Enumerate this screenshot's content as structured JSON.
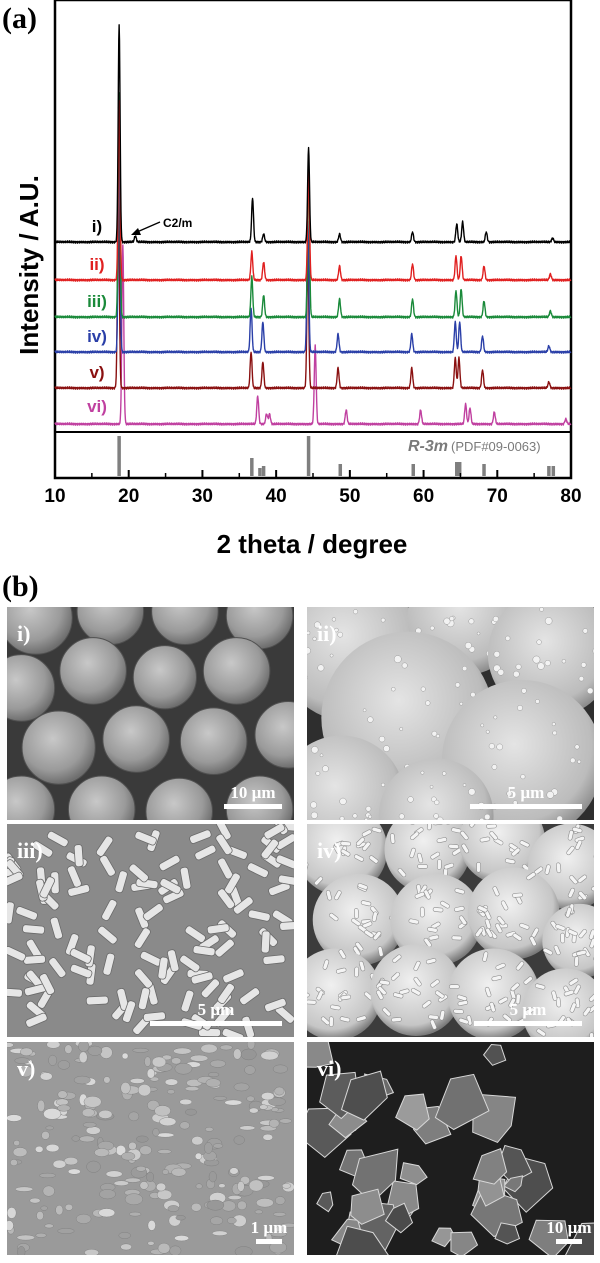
{
  "panel_a_label": "(a)",
  "panel_b_label": "(b)",
  "chart_data": {
    "type": "line",
    "xlabel": "2 theta / degree",
    "ylabel": "Intensity / A.U.",
    "xlim": [
      10,
      80
    ],
    "xticks": [
      10,
      20,
      30,
      40,
      50,
      60,
      70,
      80
    ],
    "annotation": "C2/m",
    "series": [
      {
        "label": "i)",
        "color": "#000000",
        "peaks": [
          {
            "x": 18.7,
            "h": 218
          },
          {
            "x": 20.9,
            "h": 6
          },
          {
            "x": 36.8,
            "h": 44
          },
          {
            "x": 38.3,
            "h": 8
          },
          {
            "x": 44.4,
            "h": 94
          },
          {
            "x": 48.6,
            "h": 8
          },
          {
            "x": 58.5,
            "h": 10
          },
          {
            "x": 64.5,
            "h": 18
          },
          {
            "x": 65.3,
            "h": 20
          },
          {
            "x": 68.5,
            "h": 10
          },
          {
            "x": 77.5,
            "h": 4
          }
        ]
      },
      {
        "label": "ii)",
        "color": "#e02020",
        "peaks": [
          {
            "x": 18.7,
            "h": 180
          },
          {
            "x": 36.7,
            "h": 28
          },
          {
            "x": 38.3,
            "h": 18
          },
          {
            "x": 44.4,
            "h": 110
          },
          {
            "x": 48.6,
            "h": 14
          },
          {
            "x": 58.5,
            "h": 16
          },
          {
            "x": 64.4,
            "h": 24
          },
          {
            "x": 65.1,
            "h": 24
          },
          {
            "x": 68.2,
            "h": 14
          },
          {
            "x": 77.2,
            "h": 6
          }
        ]
      },
      {
        "label": "iii)",
        "color": "#1a8a3a",
        "peaks": [
          {
            "x": 18.7,
            "h": 225
          },
          {
            "x": 36.7,
            "h": 40
          },
          {
            "x": 38.3,
            "h": 22
          },
          {
            "x": 44.4,
            "h": 150
          },
          {
            "x": 48.6,
            "h": 18
          },
          {
            "x": 58.5,
            "h": 18
          },
          {
            "x": 64.4,
            "h": 26
          },
          {
            "x": 65.1,
            "h": 28
          },
          {
            "x": 68.2,
            "h": 16
          },
          {
            "x": 77.2,
            "h": 6
          }
        ]
      },
      {
        "label": "iv)",
        "color": "#2a3fa8",
        "peaks": [
          {
            "x": 18.7,
            "h": 205
          },
          {
            "x": 36.6,
            "h": 44
          },
          {
            "x": 38.2,
            "h": 30
          },
          {
            "x": 44.3,
            "h": 130
          },
          {
            "x": 48.4,
            "h": 18
          },
          {
            "x": 58.4,
            "h": 18
          },
          {
            "x": 64.3,
            "h": 30
          },
          {
            "x": 64.9,
            "h": 30
          },
          {
            "x": 68.0,
            "h": 16
          },
          {
            "x": 77.0,
            "h": 6
          }
        ]
      },
      {
        "label": "v)",
        "color": "#8a1010",
        "peaks": [
          {
            "x": 18.6,
            "h": 195
          },
          {
            "x": 36.6,
            "h": 36
          },
          {
            "x": 38.2,
            "h": 26
          },
          {
            "x": 44.3,
            "h": 130
          },
          {
            "x": 48.4,
            "h": 20
          },
          {
            "x": 58.4,
            "h": 20
          },
          {
            "x": 64.3,
            "h": 30
          },
          {
            "x": 64.8,
            "h": 30
          },
          {
            "x": 68.0,
            "h": 18
          },
          {
            "x": 77.0,
            "h": 6
          }
        ]
      },
      {
        "label": "vi)",
        "color": "#c040a0",
        "peaks": [
          {
            "x": 19.2,
            "h": 180
          },
          {
            "x": 37.5,
            "h": 28
          },
          {
            "x": 38.7,
            "h": 10
          },
          {
            "x": 39.1,
            "h": 10
          },
          {
            "x": 45.3,
            "h": 78
          },
          {
            "x": 49.5,
            "h": 14
          },
          {
            "x": 59.6,
            "h": 14
          },
          {
            "x": 65.7,
            "h": 20
          },
          {
            "x": 66.3,
            "h": 16
          },
          {
            "x": 69.6,
            "h": 12
          },
          {
            "x": 79.3,
            "h": 5
          }
        ]
      }
    ],
    "reference": {
      "label": "R-3m",
      "pdf": "(PDF#09-0063)",
      "lines": [
        {
          "x": 18.7,
          "h": 1.0
        },
        {
          "x": 36.7,
          "h": 0.45
        },
        {
          "x": 37.8,
          "h": 0.2
        },
        {
          "x": 38.3,
          "h": 0.25
        },
        {
          "x": 44.4,
          "h": 1.0
        },
        {
          "x": 48.7,
          "h": 0.3
        },
        {
          "x": 58.6,
          "h": 0.3
        },
        {
          "x": 64.5,
          "h": 0.35
        },
        {
          "x": 64.9,
          "h": 0.35
        },
        {
          "x": 68.2,
          "h": 0.3
        },
        {
          "x": 77.0,
          "h": 0.25
        },
        {
          "x": 77.6,
          "h": 0.25
        }
      ]
    }
  },
  "sem_images": [
    {
      "label": "i)",
      "scale": "10 µm",
      "style": "spheres"
    },
    {
      "label": "ii)",
      "scale": "5 µm",
      "style": "rough-spheres"
    },
    {
      "label": "iii)",
      "scale": "5 µm",
      "style": "platelets"
    },
    {
      "label": "iv)",
      "scale": "5 µm",
      "style": "flowers"
    },
    {
      "label": "v)",
      "scale": "1 µm",
      "style": "grains"
    },
    {
      "label": "vi)",
      "scale": "10 µm",
      "style": "crystals"
    }
  ]
}
